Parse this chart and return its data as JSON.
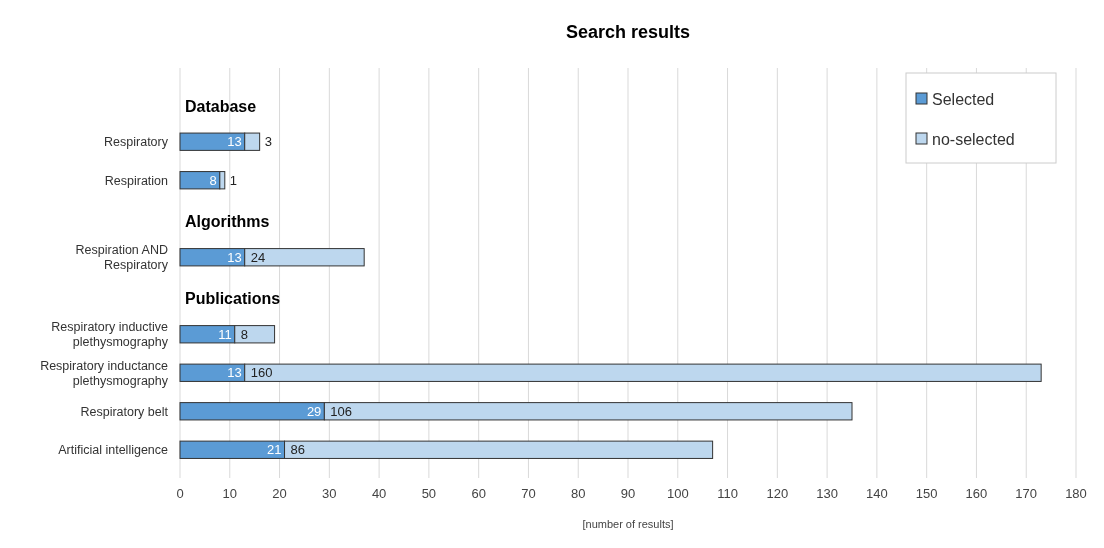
{
  "chart_data": {
    "type": "bar",
    "orientation": "horizontal",
    "stacked": true,
    "title": "Search results",
    "xlabel": "[number of results]",
    "categories": [
      null,
      "Respiratory",
      "Respiration",
      null,
      "Respiration AND Respiratory",
      null,
      "Respiratory inductive plethysmography",
      "Respiratory inductance plethysmography",
      "Respiratory belt",
      "Artificial intelligence"
    ],
    "annotations": [
      "Database",
      "Algorithms",
      "Publications"
    ],
    "series": [
      {
        "name": "Selected",
        "color": "#5b9bd5",
        "values": [
          null,
          13,
          8,
          null,
          13,
          null,
          11,
          13,
          29,
          21
        ]
      },
      {
        "name": "no-selected",
        "color": "#bdd7ee",
        "values": [
          null,
          3,
          1,
          null,
          24,
          null,
          8,
          160,
          106,
          86
        ]
      }
    ],
    "xlim": [
      0,
      180
    ],
    "xticks": [
      0,
      10,
      20,
      30,
      40,
      50,
      60,
      70,
      80,
      90,
      100,
      110,
      120,
      130,
      140,
      150,
      160,
      170,
      180
    ],
    "grid": "x",
    "legend": "top right",
    "data_labels": true
  }
}
